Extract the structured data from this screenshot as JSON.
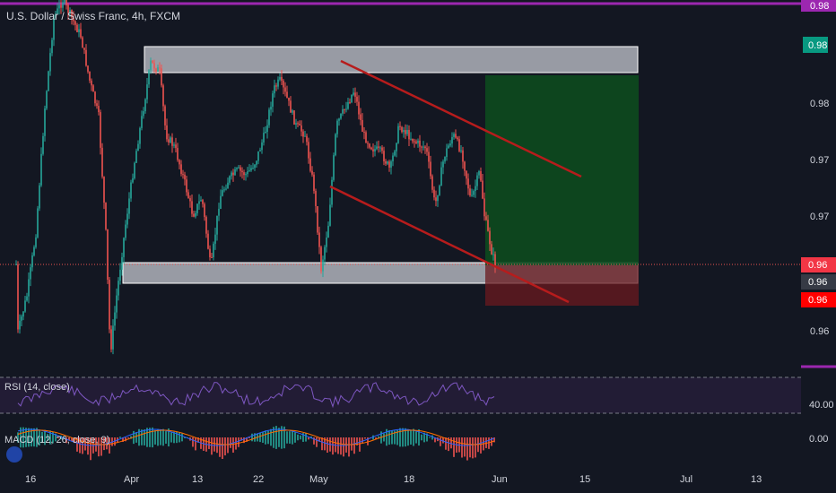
{
  "chart_data": {
    "type": "candlestick",
    "title": "U.S. Dollar / Swiss Franc, 4h, FXCM",
    "x_ticks": [
      "16",
      "Apr",
      "13",
      "22",
      "May",
      "18",
      "Jun",
      "15",
      "Jul",
      "13"
    ],
    "y_ticks": [
      "0.98",
      "0.97",
      "0.97",
      "0.96"
    ],
    "y_range": [
      0.952,
      0.99
    ],
    "price_tags": [
      {
        "label": "0.98",
        "color": "#9c27b0"
      },
      {
        "label": "0.98",
        "color": "#089981"
      },
      {
        "label": "0.96",
        "color": "#f23645"
      },
      {
        "label": "0.96",
        "color": "#363a45"
      },
      {
        "label": "0.96",
        "color": "#ff0000"
      }
    ],
    "colors": {
      "up": "#26a69a",
      "down": "#ef5350",
      "wick": "#787b86",
      "channel": "#b71c1c",
      "zone": "#d1d4dc",
      "target": "#0b3d1b",
      "stop": "#5a1518",
      "accent": "#9c27b0"
    },
    "rsi": {
      "label": "RSI (14, close)",
      "level_label": "40.00"
    },
    "macd": {
      "label": "MACD (12, 26, close, 9)",
      "level_label": "0.00"
    }
  }
}
